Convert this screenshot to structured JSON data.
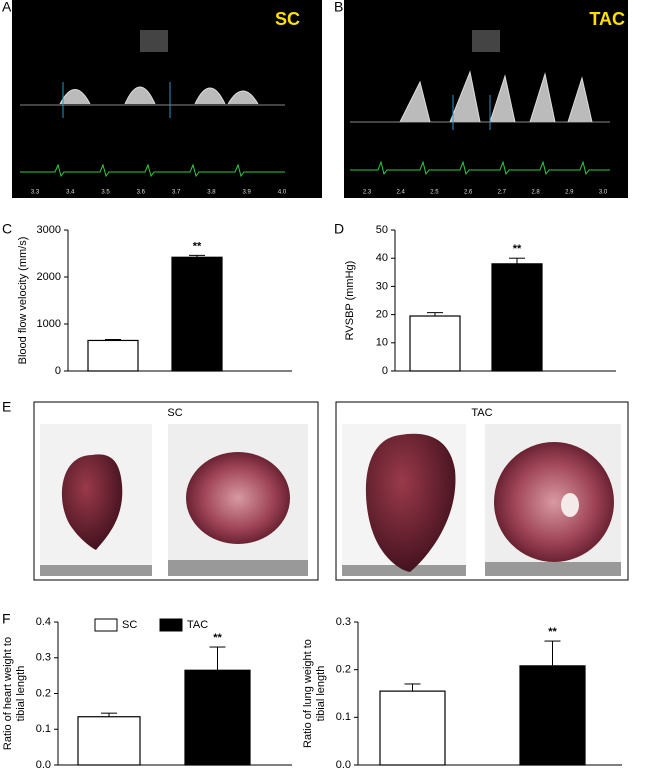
{
  "panels": {
    "A": {
      "letter": "A",
      "label": "SC",
      "xticks": [
        "3.3",
        "3.4",
        "3.5",
        "3.6",
        "3.7",
        "3.8",
        "3.9",
        "4.0"
      ]
    },
    "B": {
      "letter": "B",
      "label": "TAC",
      "xticks": [
        "2.3",
        "2.4",
        "2.5",
        "2.6",
        "2.7",
        "2.8",
        "2.9",
        "3.0"
      ]
    },
    "C": {
      "letter": "C"
    },
    "D": {
      "letter": "D"
    },
    "E": {
      "letter": "E",
      "left_label": "SC",
      "right_label": "TAC"
    },
    "F": {
      "letter": "F"
    }
  },
  "chart_data": [
    {
      "type": "bar",
      "ylabel": [
        "Blood flow velocity (mm/s)"
      ],
      "categories": [
        null,
        null
      ],
      "values": [
        650,
        2420
      ],
      "errors": [
        20,
        40
      ],
      "colors": [
        "#ffffff",
        "#000000"
      ],
      "annotation": "**",
      "ylim": [
        0,
        3000
      ],
      "yticks": [
        0,
        1000,
        2000,
        3000
      ]
    },
    {
      "type": "bar",
      "ylabel": [
        "RVSBP (mmHg)"
      ],
      "categories": [
        null,
        null
      ],
      "values": [
        19.5,
        38
      ],
      "errors": [
        1.2,
        2
      ],
      "colors": [
        "#ffffff",
        "#000000"
      ],
      "annotation": "**",
      "ylim": [
        0,
        50
      ],
      "yticks": [
        0,
        10,
        20,
        30,
        40,
        50
      ]
    },
    {
      "type": "bar",
      "ylabel": [
        "Ratio of heart weight to",
        "tibial length"
      ],
      "categories": [
        null,
        null
      ],
      "values": [
        0.135,
        0.265
      ],
      "errors": [
        0.01,
        0.065
      ],
      "colors": [
        "#ffffff",
        "#000000"
      ],
      "legend": [
        {
          "name": "SC",
          "color": "#ffffff"
        },
        {
          "name": "TAC",
          "color": "#000000"
        }
      ],
      "annotation": "**",
      "ylim": [
        0,
        0.4
      ],
      "yticks": [
        {
          "value": 0,
          "label": "0.0"
        },
        0.1,
        0.2,
        0.3,
        0.4
      ]
    },
    {
      "type": "bar",
      "ylabel": [
        "Ratio of lung weight to",
        "tibial length"
      ],
      "categories": [
        null,
        null
      ],
      "values": [
        0.155,
        0.208
      ],
      "errors": [
        0.015,
        0.052
      ],
      "colors": [
        "#ffffff",
        "#000000"
      ],
      "annotation": "**",
      "ylim": [
        0,
        0.3
      ],
      "yticks": [
        {
          "value": 0,
          "label": "0.0"
        },
        0.1,
        0.2,
        0.3
      ]
    }
  ]
}
